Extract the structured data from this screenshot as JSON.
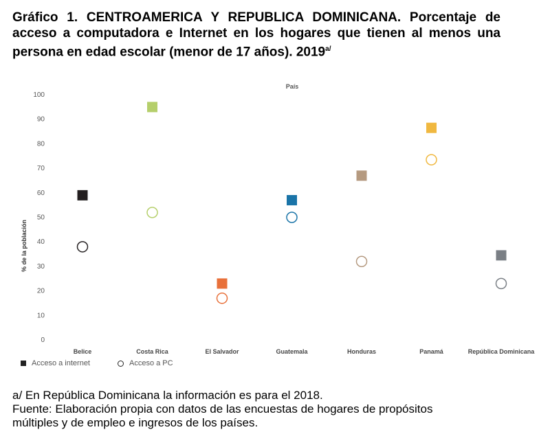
{
  "header": {
    "title": "Gráfico 1. CENTROAMERICA Y REPUBLICA DOMINICANA. Porcentaje de acceso a computadora e Internet en los hogares que tienen al menos una persona en edad escolar (menor de 17 años). 2019",
    "title_sup": "a/"
  },
  "chart_data": {
    "type": "scatter",
    "top_label": "País",
    "ylabel": "% de la población",
    "ylim": [
      0,
      100
    ],
    "yticks": [
      0,
      10,
      20,
      30,
      40,
      50,
      60,
      70,
      80,
      90,
      100
    ],
    "grid": false,
    "categories": [
      "Belice",
      "Costa Rica",
      "El Salvador",
      "Guatemala",
      "Honduras",
      "Panamá",
      "República Dominicana"
    ],
    "colors": [
      "#231f20",
      "#b5cf6b",
      "#e8703a",
      "#1a74a8",
      "#b59a80",
      "#f0b840",
      "#7a7f85"
    ],
    "series": [
      {
        "name": "Acceso a internet",
        "marker": "square",
        "values": [
          59,
          95,
          23,
          57,
          67,
          86.5,
          34.5
        ]
      },
      {
        "name": "Acceso a PC",
        "marker": "circle-open",
        "values": [
          38,
          52,
          17,
          50,
          32,
          73.5,
          23
        ]
      }
    ]
  },
  "legend": {
    "internet_label": "Acceso a internet",
    "pc_label": "Acceso a PC"
  },
  "notes": {
    "line1": "a/ En República Dominicana la información es para el 2018.",
    "line2": "Fuente: Elaboración propia con datos de las encuestas de hogares de propósitos",
    "line3": "múltiples y de empleo e ingresos de los países."
  }
}
